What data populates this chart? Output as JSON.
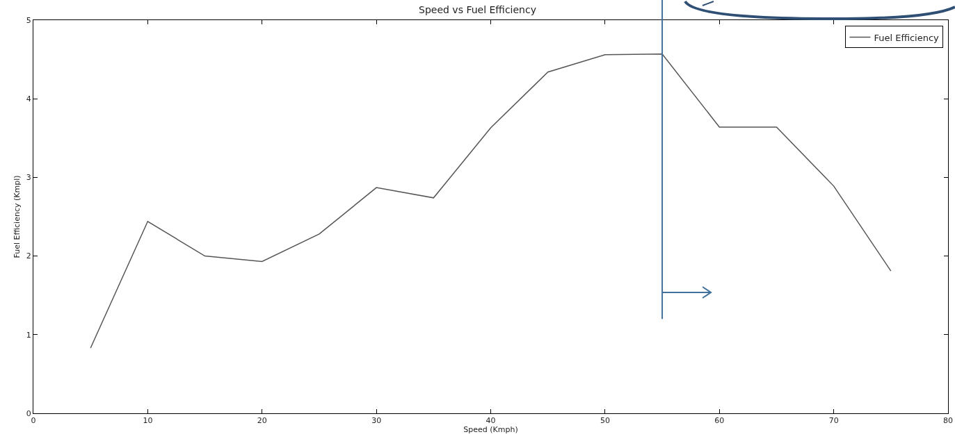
{
  "chart_data": {
    "type": "line",
    "title": "Speed vs Fuel Efficiency",
    "xlabel": "Speed (Kmph)",
    "ylabel": "Fuel Efficiency (Kmpl)",
    "x": [
      5,
      10,
      15,
      20,
      25,
      30,
      35,
      40,
      45,
      50,
      55,
      60,
      65,
      70,
      75
    ],
    "series": [
      {
        "name": "Fuel Efficiency",
        "color": "#555555",
        "values": [
          0.83,
          2.44,
          2.0,
          1.93,
          2.28,
          2.87,
          2.74,
          3.63,
          4.34,
          4.56,
          4.57,
          3.64,
          3.64,
          2.89,
          1.81
        ]
      }
    ],
    "xlim": [
      0,
      80
    ],
    "xticks": [
      0,
      10,
      20,
      30,
      40,
      50,
      60,
      70,
      80
    ],
    "ylim": [
      0,
      5
    ],
    "yticks": [
      0,
      1,
      2,
      3,
      4,
      5
    ],
    "ref_lines": [
      {
        "axis": "x",
        "value": 55,
        "color": "#41719c"
      }
    ],
    "grid": false,
    "legend": "top right",
    "marker": "none",
    "line_style": "solid"
  }
}
